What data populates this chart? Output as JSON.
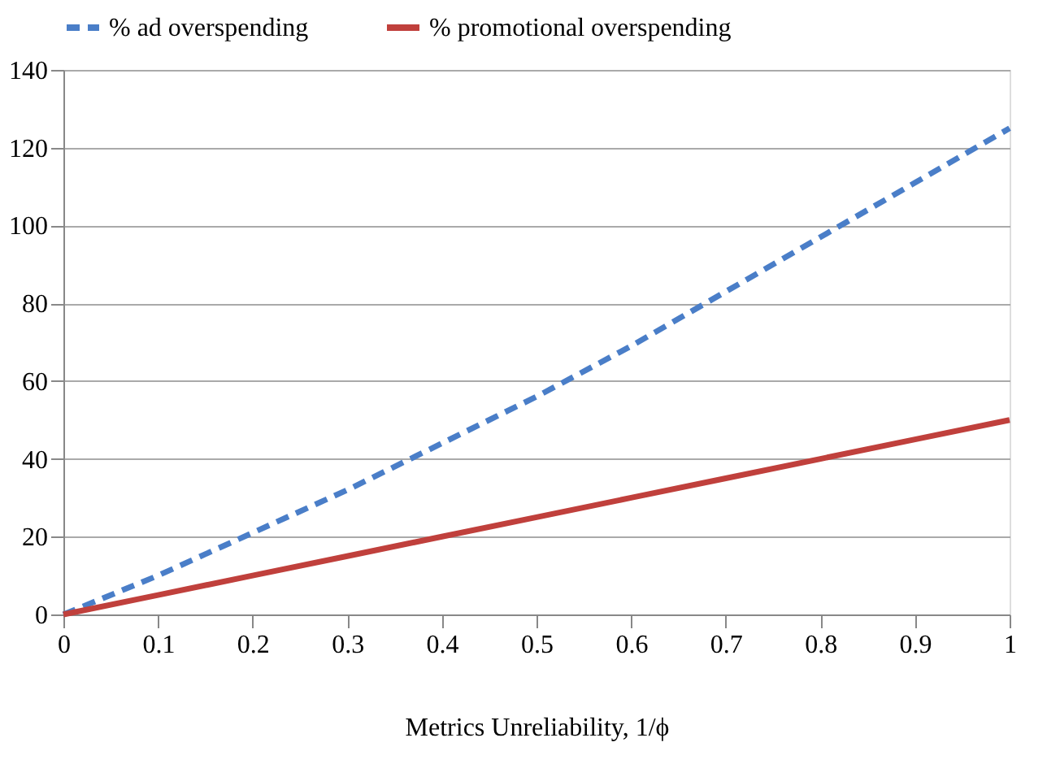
{
  "chart_data": {
    "type": "line",
    "xlabel": "Metrics Unreliability, 1/ϕ",
    "x": [
      0,
      0.1,
      0.2,
      0.3,
      0.4,
      0.5,
      0.6,
      0.7,
      0.8,
      0.9,
      1.0
    ],
    "series": [
      {
        "name": "% ad overspending",
        "color": "#4a7ec8",
        "line_style": "dashed",
        "values": [
          0,
          10,
          21,
          32,
          44,
          56,
          69,
          83,
          97,
          111,
          125
        ]
      },
      {
        "name": "% promotional overspending",
        "color": "#c0403c",
        "line_style": "solid",
        "values": [
          0,
          5,
          10,
          15,
          20,
          25,
          30,
          35,
          40,
          45,
          50
        ]
      }
    ],
    "xlim": [
      0,
      1
    ],
    "xticks": [
      0,
      0.1,
      0.2,
      0.3,
      0.4,
      0.5,
      0.6,
      0.7,
      0.8,
      0.9,
      1
    ],
    "ylim": [
      0,
      140
    ],
    "yticks": [
      0,
      20,
      40,
      60,
      80,
      100,
      120,
      140
    ],
    "grid": "y",
    "legend": "top",
    "marker": "none"
  }
}
